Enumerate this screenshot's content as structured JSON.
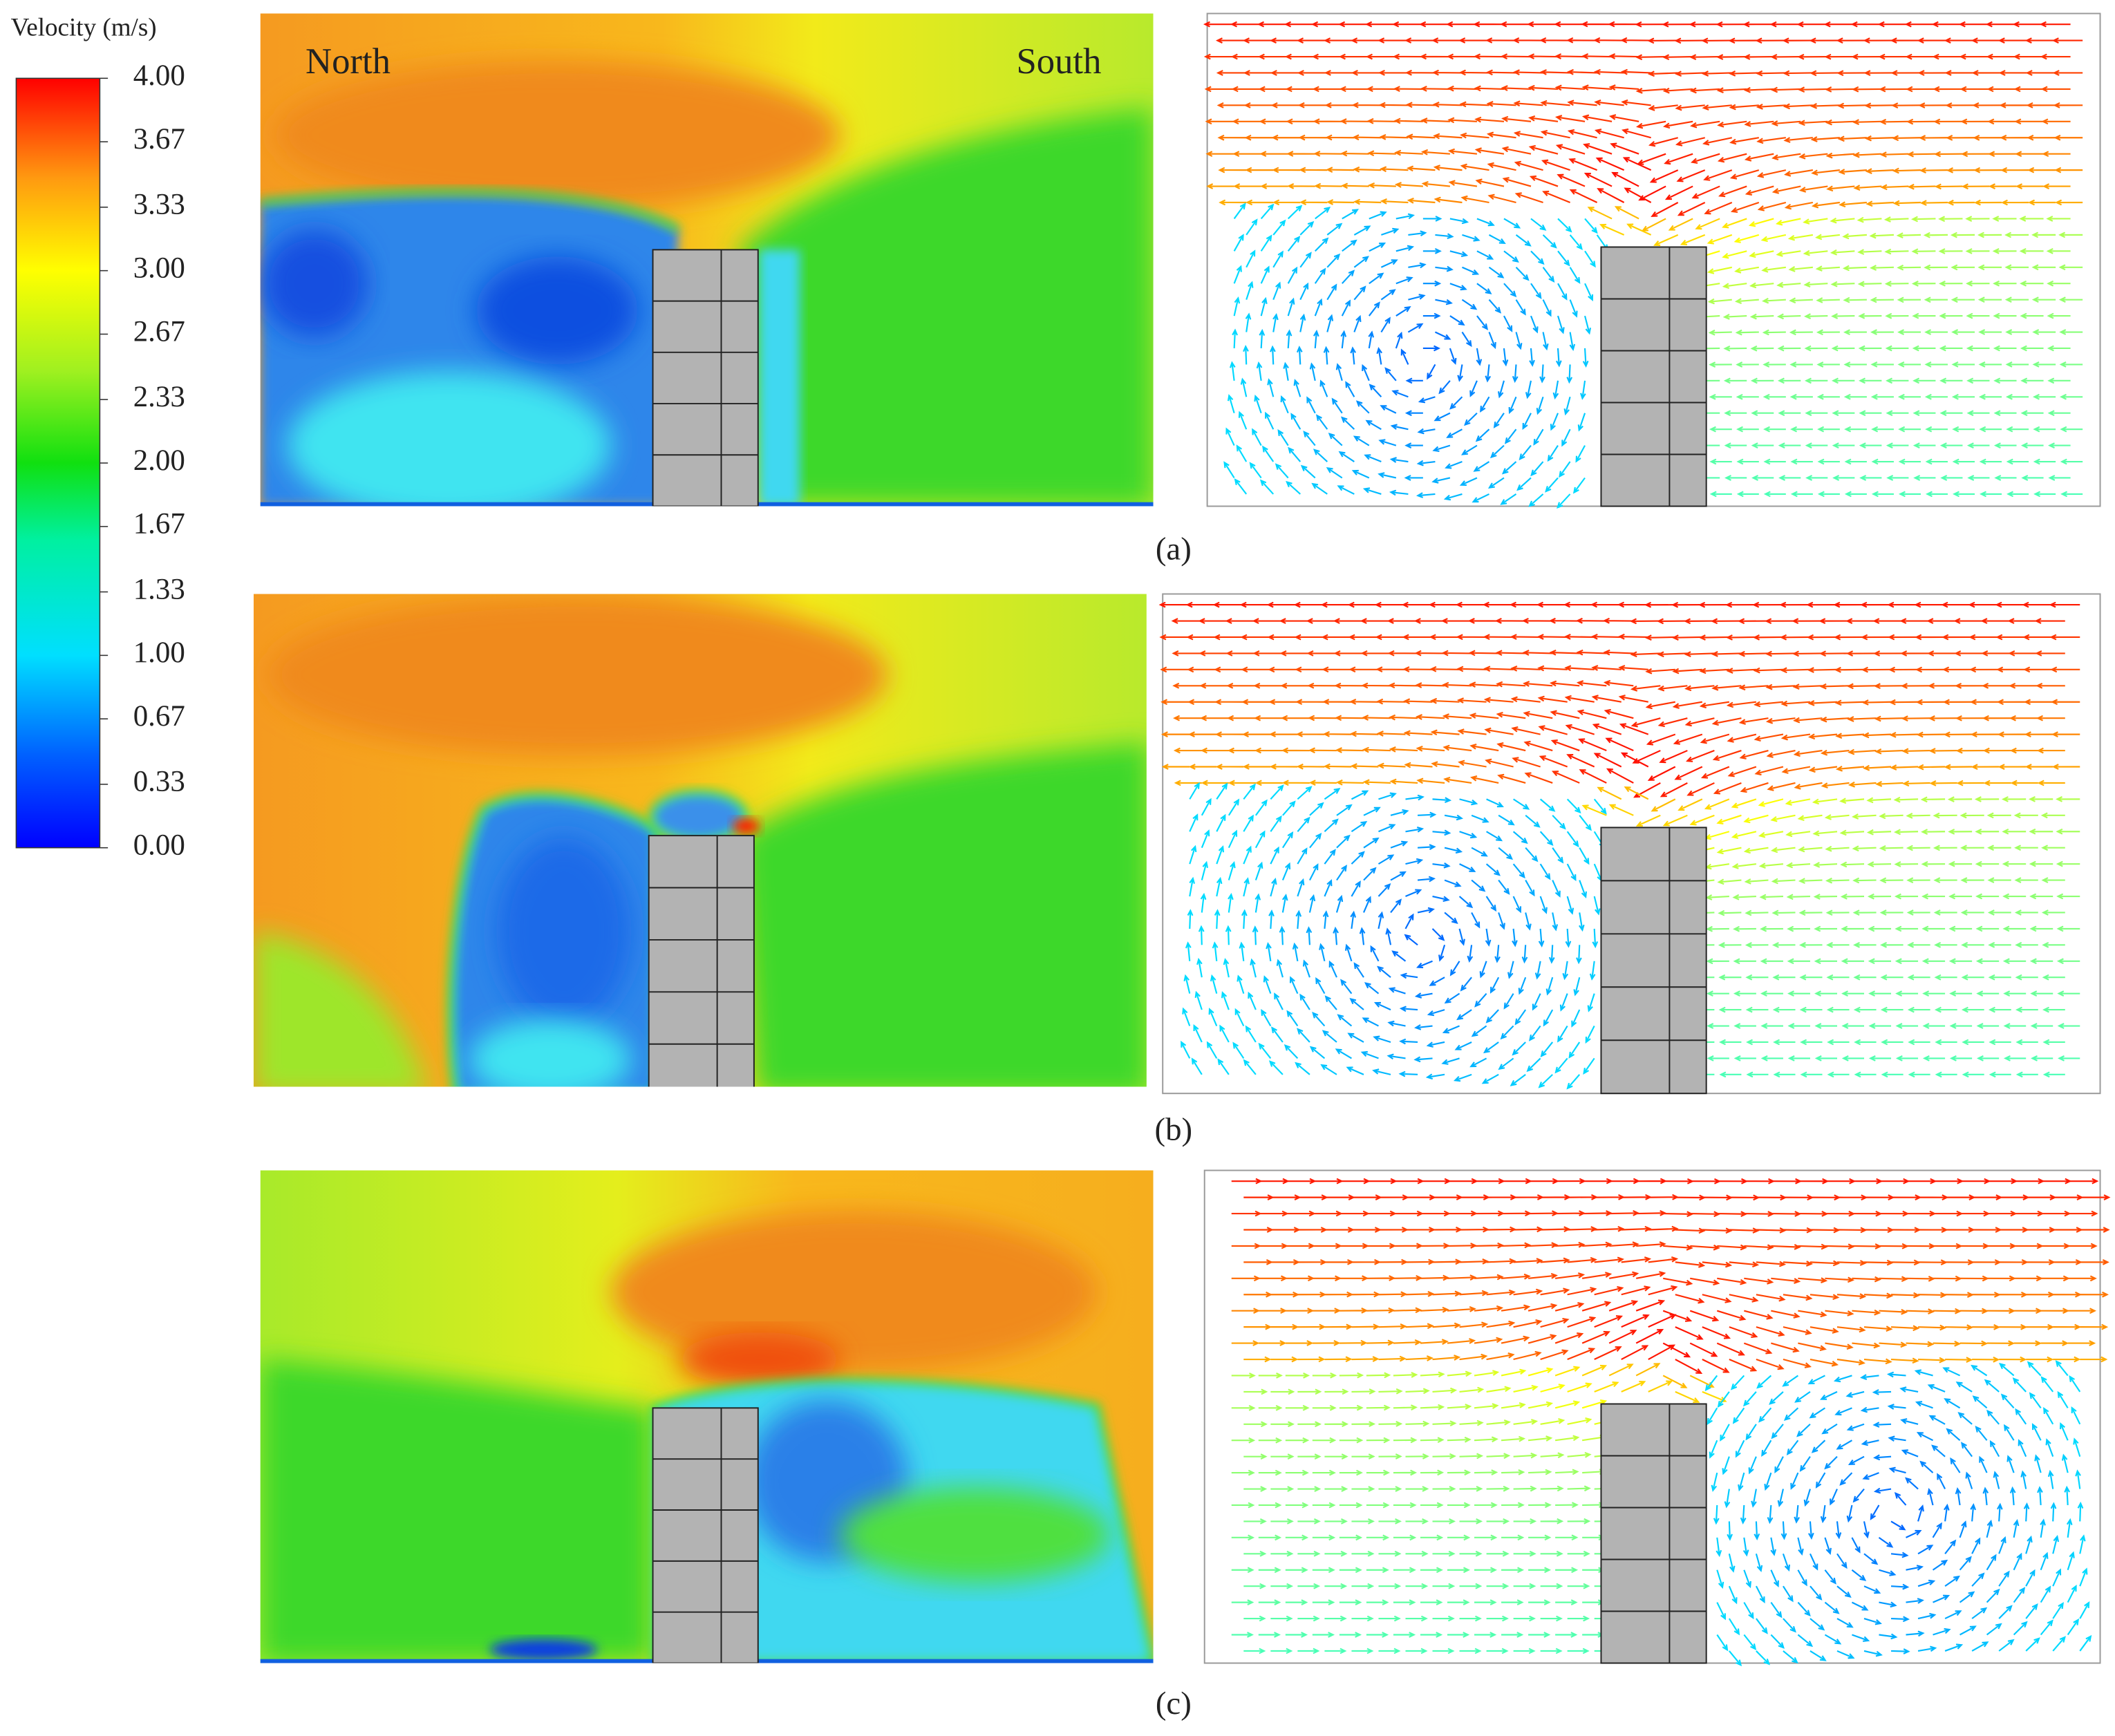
{
  "colorbar": {
    "title": "Velocity (m/s)",
    "lim": [
      0,
      4
    ],
    "ticks": [
      {
        "value": 4,
        "label": "4.00"
      },
      {
        "value": 3.67,
        "label": "3.67"
      },
      {
        "value": 3.33,
        "label": "3.33"
      },
      {
        "value": 3,
        "label": "3.00"
      },
      {
        "value": 2.67,
        "label": "2.67"
      },
      {
        "value": 2.33,
        "label": "2.33"
      },
      {
        "value": 2,
        "label": "2.00"
      },
      {
        "value": 1.67,
        "label": "1.67"
      },
      {
        "value": 1.33,
        "label": "1.33"
      },
      {
        "value": 1,
        "label": "1.00"
      },
      {
        "value": 0.67,
        "label": "0.67"
      },
      {
        "value": 0.33,
        "label": "0.33"
      },
      {
        "value": 0,
        "label": "0.00"
      }
    ]
  },
  "panels": [
    {
      "label": "(a)",
      "annotations": [
        "North",
        "South"
      ]
    },
    {
      "label": "(b)"
    },
    {
      "label": "(c)"
    }
  ]
}
